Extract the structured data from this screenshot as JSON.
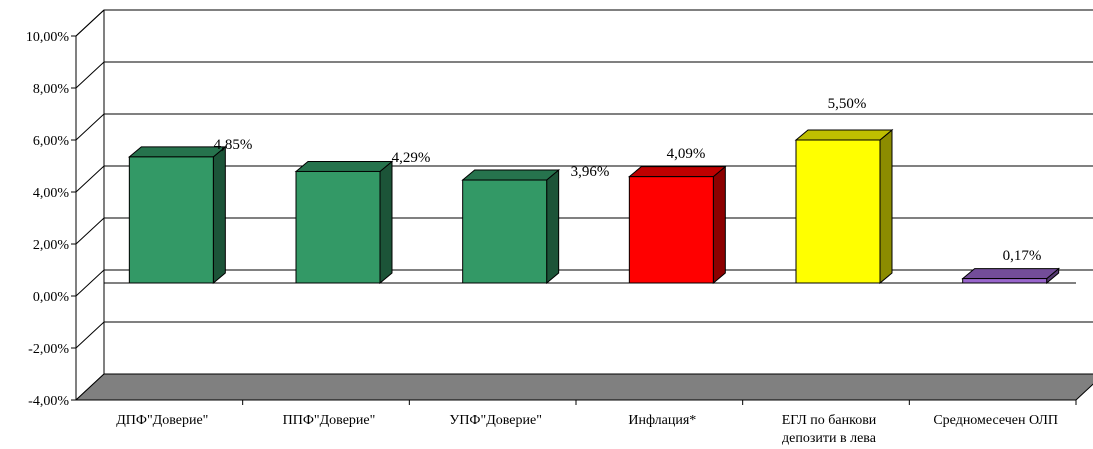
{
  "chart_data": {
    "type": "bar",
    "title": "",
    "xlabel": "",
    "ylabel": "",
    "ylim": [
      -4,
      10
    ],
    "ytick_step": 2,
    "ytick_labels": [
      "-4,00%",
      "-2,00%",
      "0,00%",
      "2,00%",
      "4,00%",
      "6,00%",
      "8,00%",
      "10,00%"
    ],
    "grid": true,
    "three_d": true,
    "categories": [
      [
        "ДПФ\"Доверие\""
      ],
      [
        "ППФ\"Доверие\""
      ],
      [
        "УПФ\"Доверие\""
      ],
      [
        "Инфлация*"
      ],
      [
        "ЕГЛ по банкови",
        "депозити в лева"
      ],
      [
        "Средномесечен ОЛП"
      ]
    ],
    "values": [
      4.85,
      4.29,
      3.96,
      4.09,
      5.5,
      0.17
    ],
    "value_labels": [
      "4,85%",
      "4,29%",
      "3,96%",
      "4,09%",
      "5,50%",
      "0,17%"
    ],
    "colors": [
      "#339966",
      "#339966",
      "#339966",
      "#ff0000",
      "#ffff00",
      "#9966cc"
    ],
    "floor_color": "#808080"
  }
}
